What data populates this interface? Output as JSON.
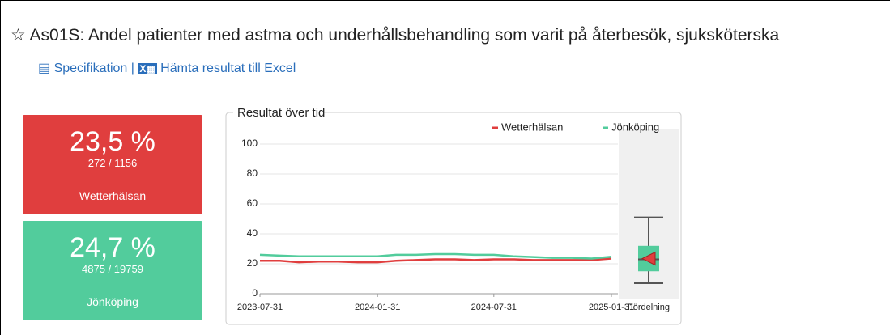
{
  "header": {
    "title": "As01S: Andel patienter med astma och underhållsbehandling som varit på återbesök, sjuksköterska"
  },
  "links": {
    "items": [
      "Specifikation",
      "Hämta resultat till Excel"
    ],
    "separator": "|"
  },
  "cards": [
    {
      "value": "23,5 %",
      "fraction": "272 / 1156",
      "name": "Wetterhälsan",
      "color": "#e03e3e"
    },
    {
      "value": "24,7 %",
      "fraction": "4875 / 19759",
      "name": "Jönköping",
      "color": "#52cc9c"
    }
  ],
  "chart_data": {
    "type": "line",
    "title": "Resultat över tid",
    "legend": "top-right",
    "grid": true,
    "x": [
      "2023-07-31",
      "2023-08-31",
      "2023-09-30",
      "2023-10-31",
      "2023-11-30",
      "2023-12-31",
      "2024-01-31",
      "2024-02-29",
      "2024-03-31",
      "2024-04-30",
      "2024-05-31",
      "2024-06-30",
      "2024-07-31",
      "2024-08-31",
      "2024-09-30",
      "2024-10-31",
      "2024-11-30",
      "2024-12-31",
      "2025-01-31"
    ],
    "xlim": [
      "2023-07-31",
      "2025-01-31"
    ],
    "xticks": [
      "2023-07-31",
      "2024-01-31",
      "2024-07-31",
      "2025-01-31"
    ],
    "ylim": [
      0,
      100
    ],
    "yticks": [
      0,
      20,
      40,
      60,
      80,
      100
    ],
    "series": [
      {
        "name": "Wetterhälsan",
        "color": "#e03e3e",
        "values": [
          22,
          22,
          21,
          21.5,
          21.5,
          21,
          21,
          22,
          22.5,
          23,
          23,
          22.5,
          23,
          23,
          22.5,
          22.5,
          22.5,
          22.5,
          23.5
        ]
      },
      {
        "name": "Jönköping",
        "color": "#52cc9c",
        "values": [
          26,
          25.5,
          25,
          25,
          25,
          25,
          25,
          26,
          26,
          26.5,
          26.5,
          26,
          26,
          25,
          24.5,
          24,
          24,
          23.5,
          24.7
        ]
      }
    ],
    "distribution": {
      "label": "Fördelning",
      "min": 7,
      "q1": 15,
      "median": 23,
      "q3": 32,
      "max": 51,
      "color": "#52cc9c"
    }
  }
}
